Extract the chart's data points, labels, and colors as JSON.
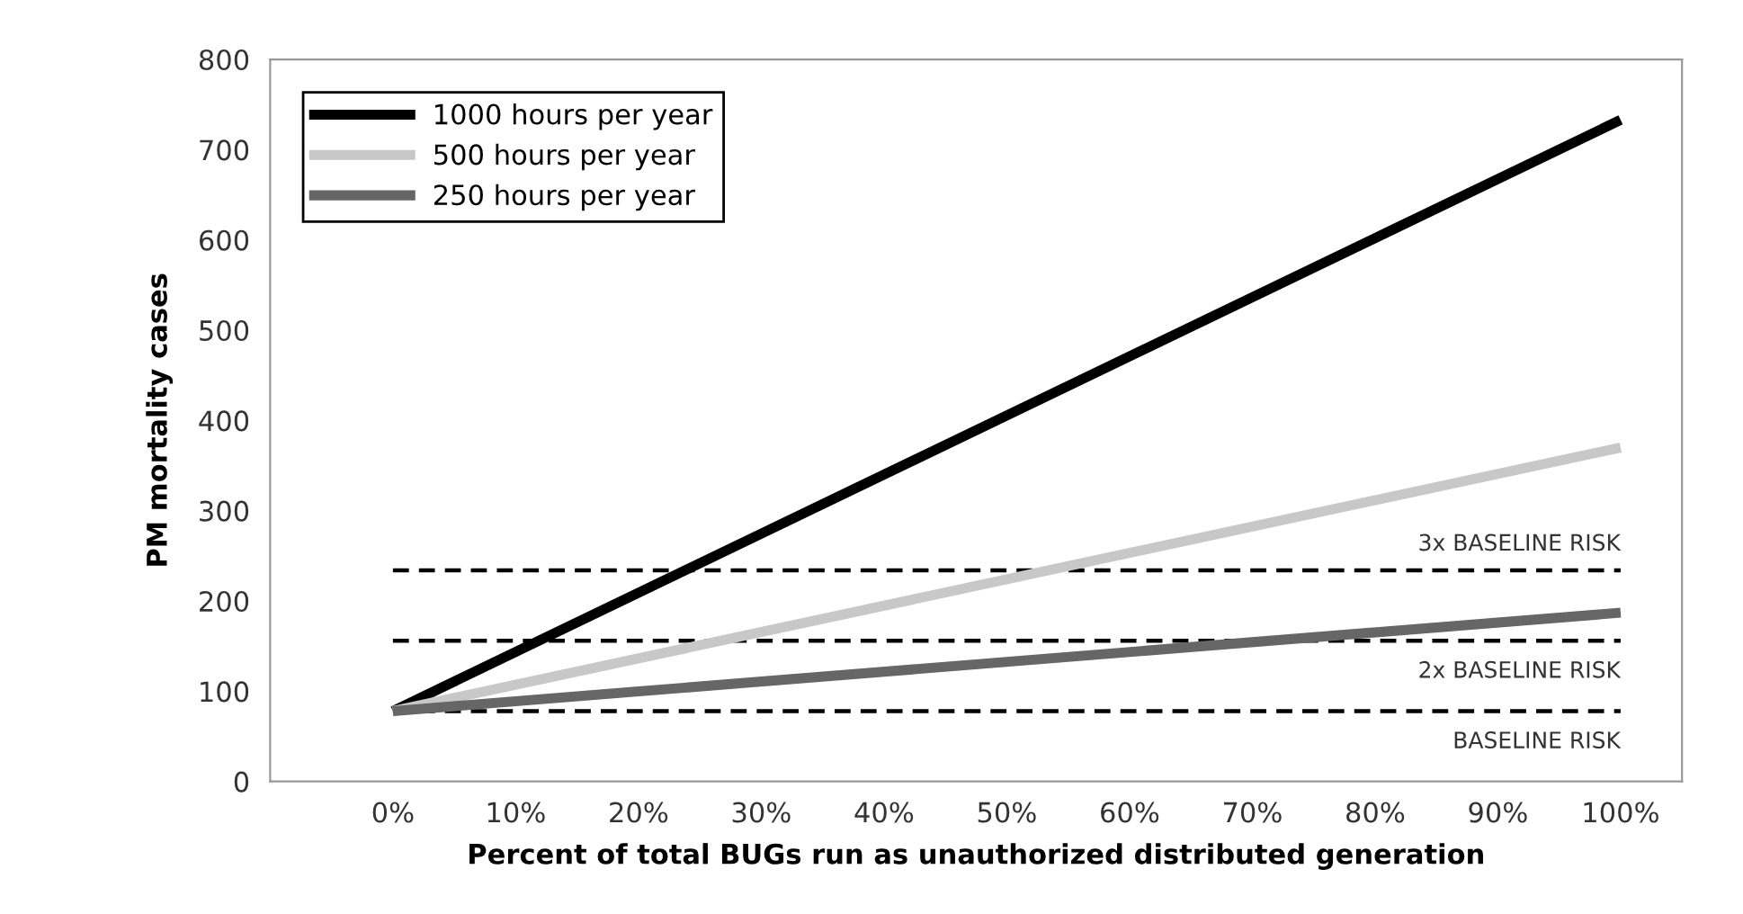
{
  "chart_data": {
    "type": "line",
    "xlabel": "Percent of total BUGs run as unauthorized distributed generation",
    "ylabel": "PM mortality cases",
    "x": [
      0,
      100
    ],
    "series": [
      {
        "name": "1000 hours per year",
        "color": "#000000",
        "values": [
          78,
          733
        ]
      },
      {
        "name": "500 hours per year",
        "color": "#c8c8c8",
        "values": [
          78,
          370
        ]
      },
      {
        "name": "250 hours per year",
        "color": "#666666",
        "values": [
          78,
          187
        ]
      }
    ],
    "xlim": [
      -10,
      105
    ],
    "xticks": [
      {
        "value": 0,
        "label": "0%"
      },
      {
        "value": 10,
        "label": "10%"
      },
      {
        "value": 20,
        "label": "20%"
      },
      {
        "value": 30,
        "label": "30%"
      },
      {
        "value": 40,
        "label": "40%"
      },
      {
        "value": 50,
        "label": "50%"
      },
      {
        "value": 60,
        "label": "60%"
      },
      {
        "value": 70,
        "label": "70%"
      },
      {
        "value": 80,
        "label": "80%"
      },
      {
        "value": 90,
        "label": "90%"
      },
      {
        "value": 100,
        "label": "100%"
      }
    ],
    "ylim": [
      0,
      800
    ],
    "yticks": [
      0,
      100,
      200,
      300,
      400,
      500,
      600,
      700,
      800
    ],
    "ref_lines": [
      {
        "axis": "y",
        "value": 234,
        "label": "3x BASELINE RISK",
        "color": "#000000",
        "line_style": "dashed"
      },
      {
        "axis": "y",
        "value": 156,
        "label": "2x BASELINE RISK",
        "color": "#000000",
        "line_style": "dashed"
      },
      {
        "axis": "y",
        "value": 78,
        "label": "BASELINE RISK",
        "color": "#000000",
        "line_style": "dashed"
      }
    ],
    "grid": false,
    "legend": "top left",
    "marker": "none",
    "line_style": "solid"
  }
}
